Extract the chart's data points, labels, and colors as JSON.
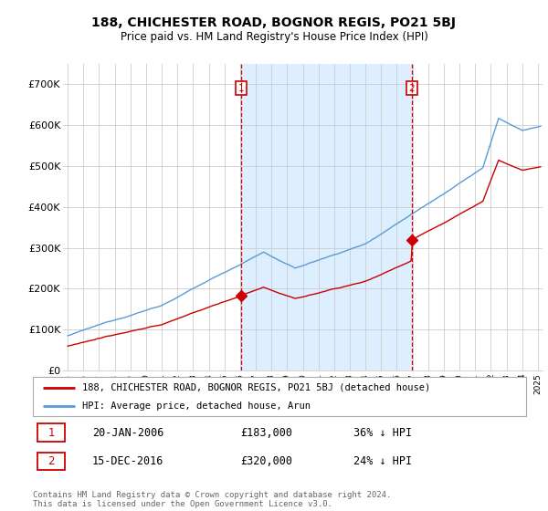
{
  "title": "188, CHICHESTER ROAD, BOGNOR REGIS, PO21 5BJ",
  "subtitle": "Price paid vs. HM Land Registry's House Price Index (HPI)",
  "legend_line1": "188, CHICHESTER ROAD, BOGNOR REGIS, PO21 5BJ (detached house)",
  "legend_line2": "HPI: Average price, detached house, Arun",
  "annotation1_label": "1",
  "annotation1_date": "20-JAN-2006",
  "annotation1_price": "£183,000",
  "annotation1_hpi": "36% ↓ HPI",
  "annotation2_label": "2",
  "annotation2_date": "15-DEC-2016",
  "annotation2_price": "£320,000",
  "annotation2_hpi": "24% ↓ HPI",
  "footer": "Contains HM Land Registry data © Crown copyright and database right 2024.\nThis data is licensed under the Open Government Licence v3.0.",
  "sale1_year": 2006.05,
  "sale1_value": 183000,
  "sale2_year": 2016.96,
  "sale2_value": 320000,
  "hpi_color": "#5b9bd5",
  "hpi_fill_color": "#ddeeff",
  "price_color": "#cc0000",
  "vline_color": "#cc0000",
  "background_color": "#ffffff",
  "grid_color": "#cccccc",
  "ylim_min": 0,
  "ylim_max": 750000,
  "yticks": [
    0,
    100000,
    200000,
    300000,
    400000,
    500000,
    600000,
    700000
  ],
  "ytick_labels": [
    "£0",
    "£100K",
    "£200K",
    "£300K",
    "£400K",
    "£500K",
    "£600K",
    "£700K"
  ],
  "xmin": 1994.7,
  "xmax": 2025.3
}
